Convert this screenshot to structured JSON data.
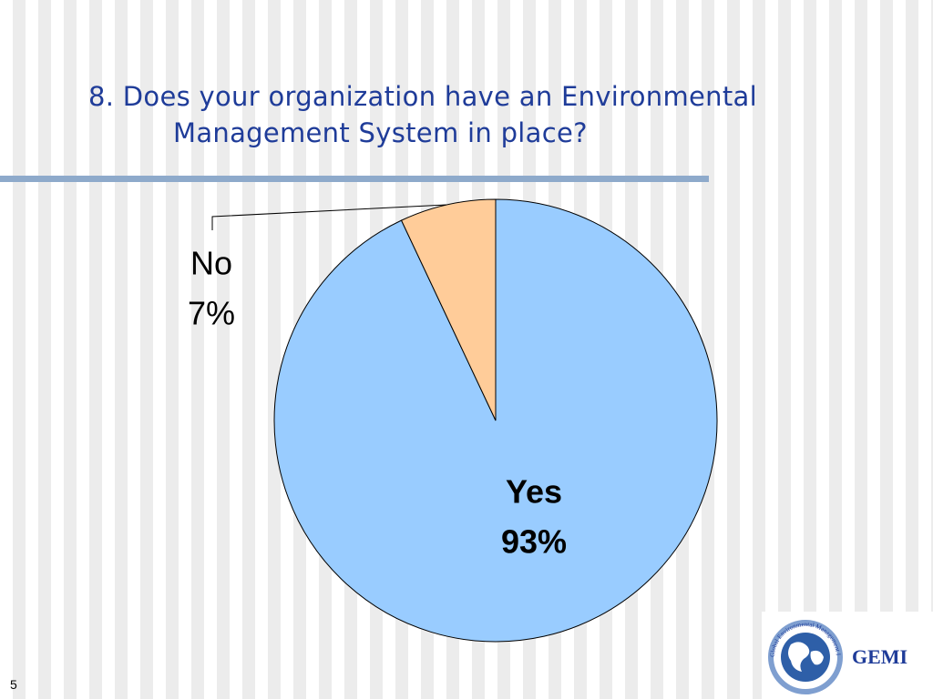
{
  "chart_data": {
    "type": "pie",
    "title": "8. Does your organization have an Environmental Management System in place?",
    "categories": [
      "Yes",
      "No"
    ],
    "values": [
      93,
      7
    ],
    "value_labels": [
      "93%",
      "7%"
    ],
    "colors": [
      "#99ccff",
      "#ffcc99"
    ]
  },
  "footer": {
    "slide_number": "5",
    "logo_text": "GEMI",
    "logo_ring_text": "Global Environmental Management Initiative"
  }
}
